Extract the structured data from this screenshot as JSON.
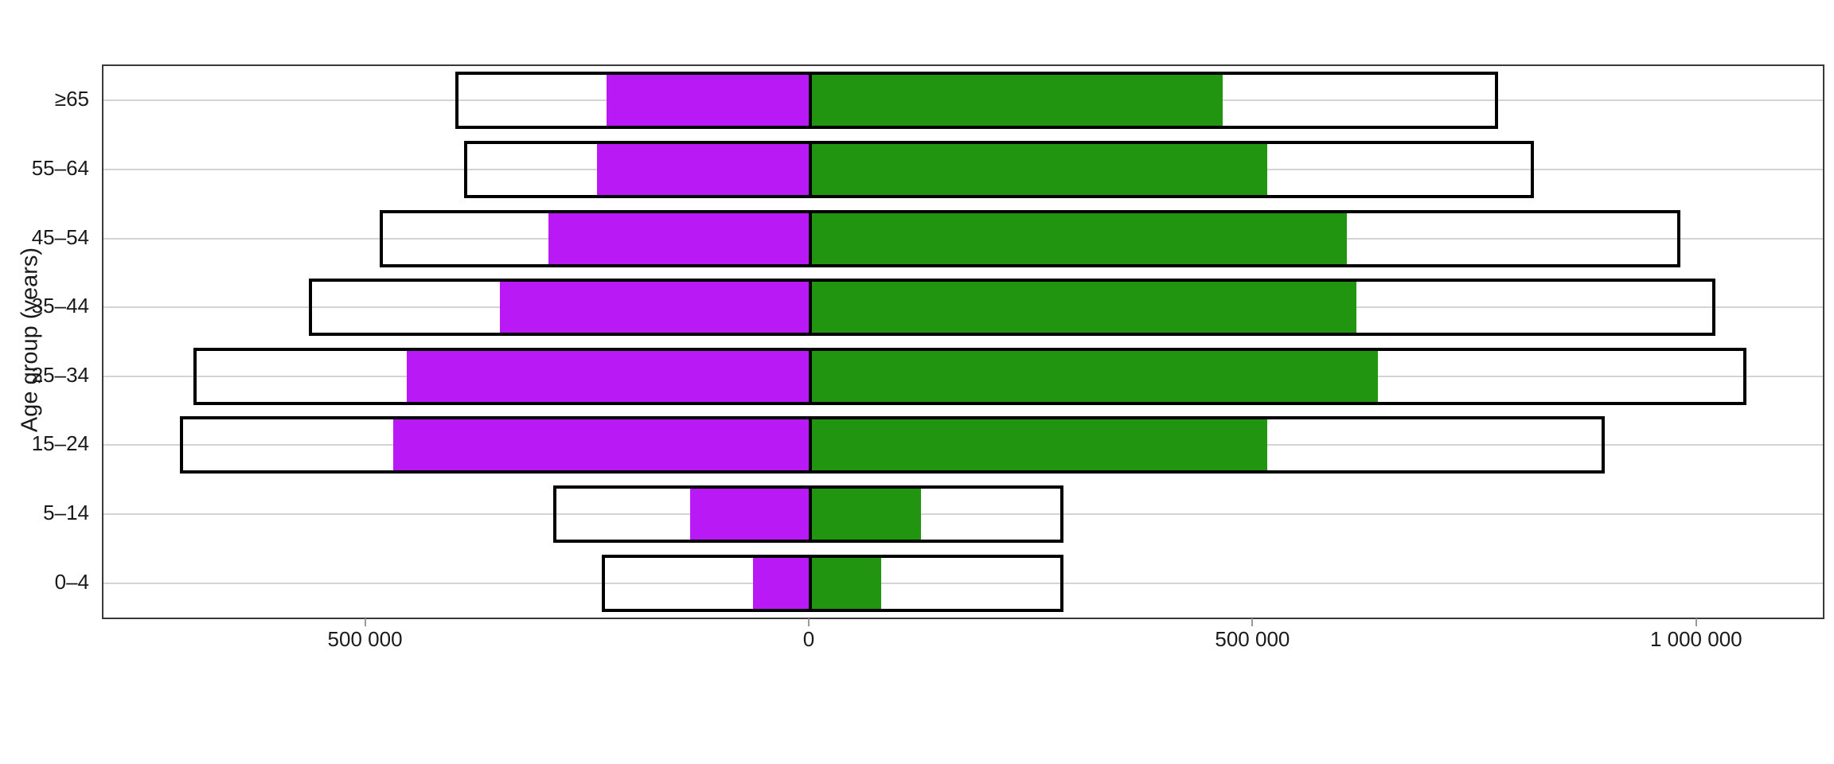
{
  "chart_data": {
    "type": "bar",
    "variant": "horizontal-diverging-pyramid",
    "title": "",
    "xlabel": "",
    "ylabel": "Age group (years)",
    "categories": [
      "≥65",
      "55–64",
      "45–54",
      "35–44",
      "25–34",
      "15–24",
      "5–14",
      "0–4"
    ],
    "series": [
      {
        "name": "left-total-outline",
        "side": "left",
        "style": "outline",
        "fill_color": "#ffffff",
        "border_color": "#000000",
        "values": [
          400000,
          390000,
          485000,
          565000,
          695000,
          710000,
          290000,
          235000
        ]
      },
      {
        "name": "left-filled",
        "side": "left",
        "style": "fill",
        "fill_color": "#b919f5",
        "values": [
          230000,
          240000,
          295000,
          350000,
          455000,
          470000,
          135000,
          65000
        ]
      },
      {
        "name": "right-filled",
        "side": "right",
        "style": "fill",
        "fill_color": "#219410",
        "values": [
          465000,
          515000,
          605000,
          615000,
          640000,
          515000,
          125000,
          80000
        ]
      },
      {
        "name": "right-total-outline",
        "side": "right",
        "style": "outline",
        "fill_color": "#ffffff",
        "border_color": "#000000",
        "values": [
          775000,
          815000,
          980000,
          1020000,
          1055000,
          895000,
          285000,
          285000
        ]
      }
    ],
    "x_ticks": [
      {
        "value": -500000,
        "label": "500 000"
      },
      {
        "value": 0,
        "label": "0"
      },
      {
        "value": 500000,
        "label": "500 000"
      },
      {
        "value": 1000000,
        "label": "1 000 000"
      }
    ],
    "xlim": [
      -796500,
      1141000
    ],
    "grid": "horizontal-gridlines-at-category-centers",
    "gridline_color": "#d4d4d4",
    "panel_border_color": "#3a3a3a",
    "zero_divider_color": "#000000",
    "legend": "none"
  }
}
